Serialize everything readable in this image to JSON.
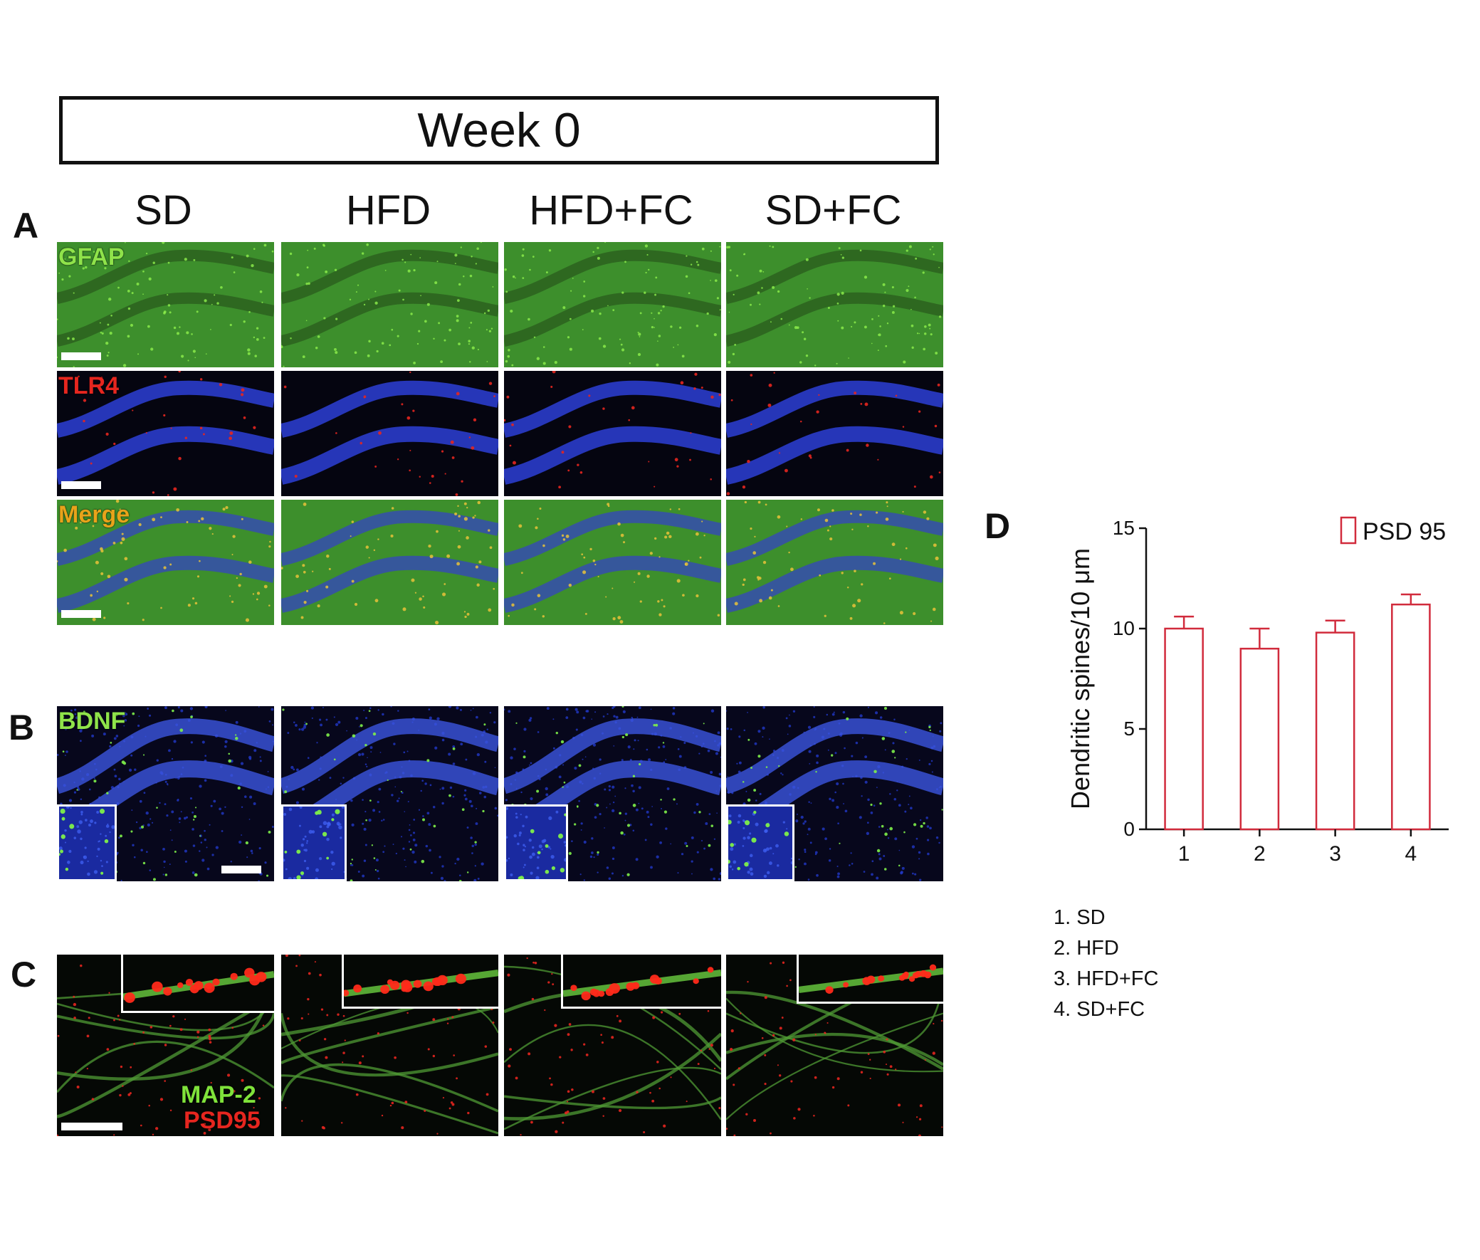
{
  "figure": {
    "title": "Week 0",
    "columns": [
      "SD",
      "HFD",
      "HFD+FC",
      "SD+FC"
    ],
    "panels": {
      "A": "A",
      "B": "B",
      "C": "C",
      "D": "D"
    },
    "stains": {
      "gfap": "GFAP",
      "tlr4": "TLR4",
      "merge": "Merge",
      "bdnf": "BDNF",
      "map2": "MAP-2",
      "psd95": "PSD95"
    },
    "stain_colors": {
      "gfap": "#8fe34a",
      "tlr4": "#e6261f",
      "merge": "#e8a31a",
      "bdnf": "#8fe34a",
      "map2": "#7fe23a",
      "psd95": "#e6261f"
    },
    "legend_list": [
      "1. SD",
      "2. HFD",
      "3. HFD+FC",
      "4. SD+FC"
    ]
  },
  "chart_data": {
    "type": "bar",
    "categories": [
      "1",
      "2",
      "3",
      "4"
    ],
    "series": [
      {
        "name": "PSD 95",
        "values": [
          10.0,
          9.0,
          9.8,
          11.2
        ],
        "errors": [
          0.6,
          1.0,
          0.6,
          0.5
        ]
      }
    ],
    "ylabel": "Dendritic spines/10 μm",
    "xlabel": "",
    "ylim": [
      0,
      15
    ],
    "yticks": [
      0,
      5,
      10,
      15
    ],
    "legend": "top-right",
    "bar_color": "#d12b3c",
    "grid": false
  }
}
